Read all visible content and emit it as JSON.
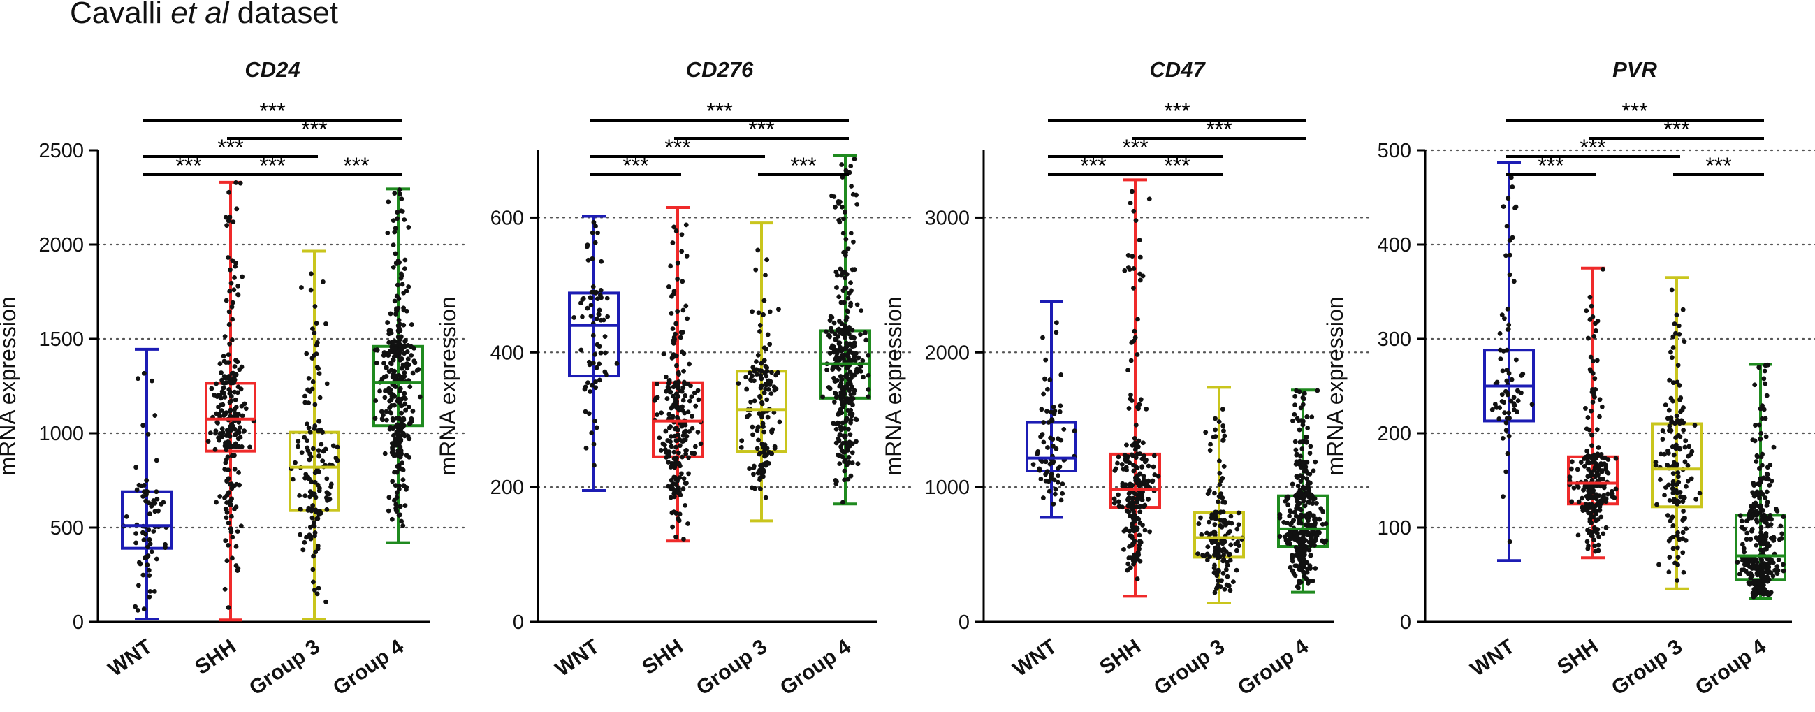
{
  "figure": {
    "title_prefix": "Cavalli ",
    "title_italic": "et al",
    "title_suffix": " dataset"
  },
  "colors": {
    "WNT": "#1c1cb4",
    "SHH": "#ef2a2a",
    "Group 3": "#c9c51d",
    "Group 4": "#1f8a1f",
    "points": "#111111",
    "axis": "#000000",
    "grid": "#555555"
  },
  "chart_data": [
    {
      "type": "box",
      "title": "CD24",
      "xlabel": "",
      "ylabel": "mRNA expression",
      "categories": [
        "WNT",
        "SHH",
        "Group 3",
        "Group 4"
      ],
      "ylim": [
        0,
        2500
      ],
      "yticks": [
        0,
        500,
        1000,
        1500,
        2000,
        2500
      ],
      "gridlines": [
        500,
        1000,
        1500,
        2000
      ],
      "series": [
        {
          "name": "WNT",
          "min": 15,
          "q1": 390,
          "median": 510,
          "q3": 690,
          "max": 1445,
          "n": 70
        },
        {
          "name": "SHH",
          "min": 10,
          "q1": 905,
          "median": 1075,
          "q3": 1265,
          "max": 2330,
          "n": 220
        },
        {
          "name": "Group 3",
          "min": 15,
          "q1": 590,
          "median": 820,
          "q3": 1005,
          "max": 1965,
          "n": 140
        },
        {
          "name": "Group 4",
          "min": 420,
          "q1": 1040,
          "median": 1270,
          "q3": 1460,
          "max": 2295,
          "n": 320
        }
      ],
      "comparisons": [
        {
          "from": "WNT",
          "to": "SHH",
          "label": "***"
        },
        {
          "from": "SHH",
          "to": "Group 3",
          "label": "***"
        },
        {
          "from": "Group 3",
          "to": "Group 4",
          "label": "***"
        },
        {
          "from": "WNT",
          "to": "Group 3",
          "label": "***"
        },
        {
          "from": "WNT",
          "to": "Group 4",
          "label": "***"
        },
        {
          "from": "SHH",
          "to": "Group 4",
          "label": "***"
        }
      ]
    },
    {
      "type": "box",
      "title": "CD276",
      "xlabel": "",
      "ylabel": "mRNA expression",
      "categories": [
        "WNT",
        "SHH",
        "Group 3",
        "Group 4"
      ],
      "ylim": [
        0,
        700
      ],
      "yticks": [
        0,
        200,
        400,
        600
      ],
      "gridlines": [
        200,
        400,
        600
      ],
      "series": [
        {
          "name": "WNT",
          "min": 195,
          "q1": 365,
          "median": 440,
          "q3": 488,
          "max": 602,
          "n": 70
        },
        {
          "name": "SHH",
          "min": 120,
          "q1": 245,
          "median": 298,
          "q3": 355,
          "max": 615,
          "n": 220
        },
        {
          "name": "Group 3",
          "min": 150,
          "q1": 253,
          "median": 315,
          "q3": 372,
          "max": 592,
          "n": 140
        },
        {
          "name": "Group 4",
          "min": 175,
          "q1": 332,
          "median": 383,
          "q3": 432,
          "max": 692,
          "n": 320
        }
      ],
      "comparisons": [
        {
          "from": "WNT",
          "to": "SHH",
          "label": "***"
        },
        {
          "from": "WNT",
          "to": "Group 3",
          "label": "***"
        },
        {
          "from": "WNT",
          "to": "Group 4",
          "label": "***"
        },
        {
          "from": "SHH",
          "to": "Group 4",
          "label": "***"
        },
        {
          "from": "Group 3",
          "to": "Group 4",
          "label": "***"
        }
      ]
    },
    {
      "type": "box",
      "title": "CD47",
      "xlabel": "",
      "ylabel": "mRNA expression",
      "categories": [
        "WNT",
        "SHH",
        "Group 3",
        "Group 4"
      ],
      "ylim": [
        0,
        3500
      ],
      "yticks": [
        0,
        1000,
        2000,
        3000
      ],
      "gridlines": [
        1000,
        2000,
        3000
      ],
      "series": [
        {
          "name": "WNT",
          "min": 775,
          "q1": 1120,
          "median": 1215,
          "q3": 1480,
          "max": 2380,
          "n": 70
        },
        {
          "name": "SHH",
          "min": 190,
          "q1": 850,
          "median": 980,
          "q3": 1245,
          "max": 3280,
          "n": 220
        },
        {
          "name": "Group 3",
          "min": 140,
          "q1": 480,
          "median": 625,
          "q3": 810,
          "max": 1740,
          "n": 140
        },
        {
          "name": "Group 4",
          "min": 220,
          "q1": 560,
          "median": 690,
          "q3": 935,
          "max": 1720,
          "n": 320
        }
      ],
      "comparisons": [
        {
          "from": "WNT",
          "to": "SHH",
          "label": "***"
        },
        {
          "from": "SHH",
          "to": "Group 3",
          "label": "***"
        },
        {
          "from": "WNT",
          "to": "Group 3",
          "label": "***"
        },
        {
          "from": "WNT",
          "to": "Group 4",
          "label": "***"
        },
        {
          "from": "SHH",
          "to": "Group 4",
          "label": "***"
        }
      ]
    },
    {
      "type": "box",
      "title": "PVR",
      "xlabel": "",
      "ylabel": "mRNA expression",
      "categories": [
        "WNT",
        "SHH",
        "Group 3",
        "Group 4"
      ],
      "ylim": [
        0,
        500
      ],
      "yticks": [
        0,
        100,
        200,
        300,
        400,
        500
      ],
      "gridlines": [
        100,
        200,
        300,
        400,
        500
      ],
      "series": [
        {
          "name": "WNT",
          "min": 65,
          "q1": 213,
          "median": 250,
          "q3": 288,
          "max": 487,
          "n": 70
        },
        {
          "name": "SHH",
          "min": 68,
          "q1": 125,
          "median": 147,
          "q3": 175,
          "max": 375,
          "n": 220
        },
        {
          "name": "Group 3",
          "min": 35,
          "q1": 122,
          "median": 162,
          "q3": 210,
          "max": 365,
          "n": 140
        },
        {
          "name": "Group 4",
          "min": 25,
          "q1": 45,
          "median": 70,
          "q3": 113,
          "max": 273,
          "n": 320
        }
      ],
      "comparisons": [
        {
          "from": "WNT",
          "to": "SHH",
          "label": "***"
        },
        {
          "from": "WNT",
          "to": "Group 3",
          "label": "***"
        },
        {
          "from": "WNT",
          "to": "Group 4",
          "label": "***"
        },
        {
          "from": "SHH",
          "to": "Group 4",
          "label": "***"
        },
        {
          "from": "Group 3",
          "to": "Group 4",
          "label": "***"
        }
      ]
    }
  ]
}
